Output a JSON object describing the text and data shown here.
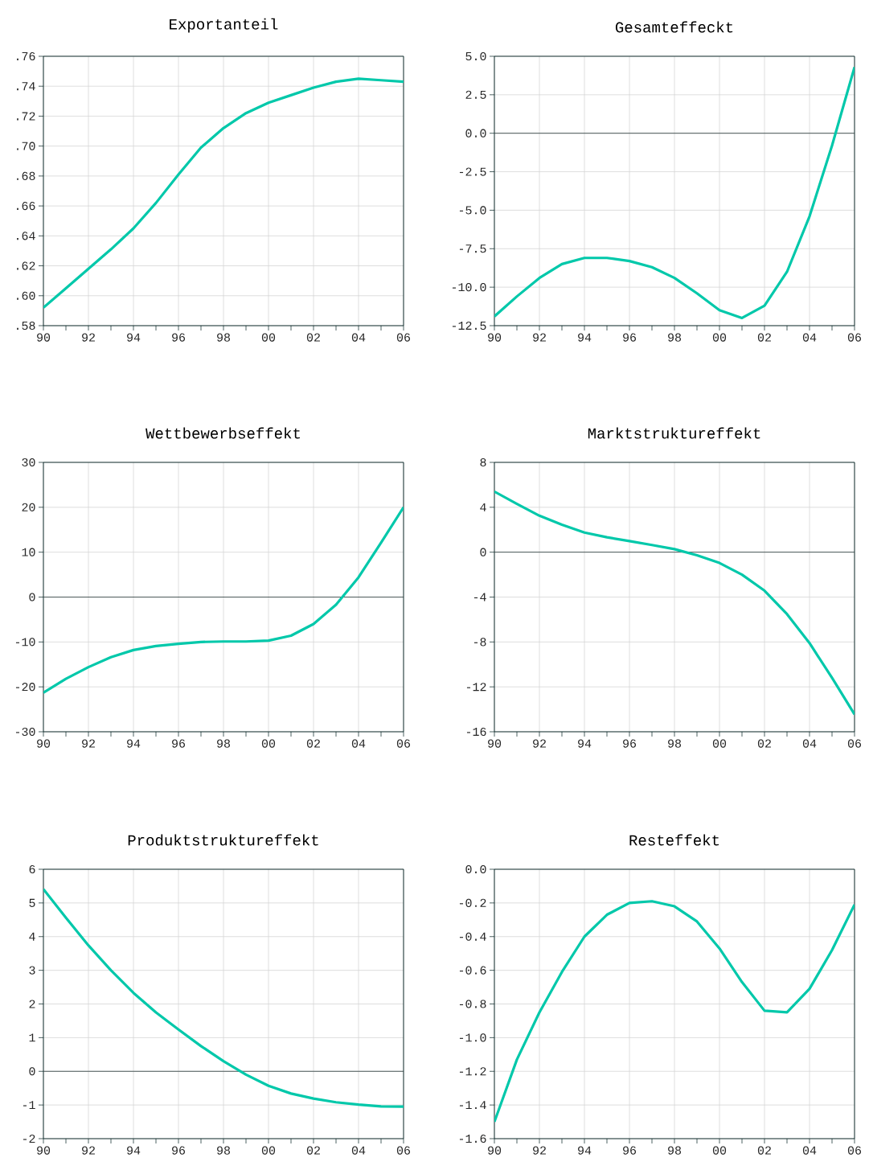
{
  "chart_data": [
    {
      "type": "line",
      "title": "Exportanteil",
      "color": "#00c8aa",
      "grid": true,
      "x": [
        1990,
        1991,
        1992,
        1993,
        1994,
        1995,
        1996,
        1997,
        1998,
        1999,
        2000,
        2001,
        2002,
        2003,
        2004,
        2005,
        2006
      ],
      "values": [
        0.592,
        0.605,
        0.618,
        0.631,
        0.645,
        0.662,
        0.681,
        0.699,
        0.712,
        0.722,
        0.729,
        0.734,
        0.739,
        0.743,
        0.745,
        0.744,
        0.743
      ],
      "xlim": [
        1990,
        2006
      ],
      "xticks": [
        {
          "value": 1990,
          "label": "90"
        },
        {
          "value": 1991,
          "label": null
        },
        {
          "value": 1992,
          "label": "92"
        },
        {
          "value": 1993,
          "label": null
        },
        {
          "value": 1994,
          "label": "94"
        },
        {
          "value": 1995,
          "label": null
        },
        {
          "value": 1996,
          "label": "96"
        },
        {
          "value": 1997,
          "label": null
        },
        {
          "value": 1998,
          "label": "98"
        },
        {
          "value": 1999,
          "label": null
        },
        {
          "value": 2000,
          "label": "00"
        },
        {
          "value": 2001,
          "label": null
        },
        {
          "value": 2002,
          "label": "02"
        },
        {
          "value": 2003,
          "label": null
        },
        {
          "value": 2004,
          "label": "04"
        },
        {
          "value": 2005,
          "label": null
        },
        {
          "value": 2006,
          "label": "06"
        }
      ],
      "ylim": [
        0.58,
        0.76
      ],
      "yticks": [
        {
          "value": 0.58,
          "label": ".58"
        },
        {
          "value": 0.6,
          "label": ".60"
        },
        {
          "value": 0.62,
          "label": ".62"
        },
        {
          "value": 0.64,
          "label": ".64"
        },
        {
          "value": 0.66,
          "label": ".66"
        },
        {
          "value": 0.68,
          "label": ".68"
        },
        {
          "value": 0.7,
          "label": ".70"
        },
        {
          "value": 0.72,
          "label": ".72"
        },
        {
          "value": 0.74,
          "label": ".74"
        },
        {
          "value": 0.76,
          "label": ".76"
        }
      ]
    },
    {
      "type": "line",
      "title": "Gesamteffeckt",
      "color": "#00c8aa",
      "grid": true,
      "x": [
        1990,
        1991,
        1992,
        1993,
        1994,
        1995,
        1996,
        1997,
        1998,
        1999,
        2000,
        2001,
        2002,
        2003,
        2004,
        2005,
        2006
      ],
      "values": [
        -11.9,
        -10.6,
        -9.4,
        -8.5,
        -8.1,
        -8.1,
        -8.3,
        -8.7,
        -9.4,
        -10.4,
        -11.5,
        -12.0,
        -11.2,
        -9.0,
        -5.4,
        -0.8,
        4.3
      ],
      "xlim": [
        1990,
        2006
      ],
      "xticks": [
        {
          "value": 1990,
          "label": "90"
        },
        {
          "value": 1991,
          "label": null
        },
        {
          "value": 1992,
          "label": "92"
        },
        {
          "value": 1993,
          "label": null
        },
        {
          "value": 1994,
          "label": "94"
        },
        {
          "value": 1995,
          "label": null
        },
        {
          "value": 1996,
          "label": "96"
        },
        {
          "value": 1997,
          "label": null
        },
        {
          "value": 1998,
          "label": "98"
        },
        {
          "value": 1999,
          "label": null
        },
        {
          "value": 2000,
          "label": "00"
        },
        {
          "value": 2001,
          "label": null
        },
        {
          "value": 2002,
          "label": "02"
        },
        {
          "value": 2003,
          "label": null
        },
        {
          "value": 2004,
          "label": "04"
        },
        {
          "value": 2005,
          "label": null
        },
        {
          "value": 2006,
          "label": "06"
        }
      ],
      "ylim": [
        -12.5,
        5
      ],
      "yticks": [
        {
          "value": -12.5,
          "label": "-12.5"
        },
        {
          "value": -10,
          "label": "-10.0"
        },
        {
          "value": -7.5,
          "label": "-7.5"
        },
        {
          "value": -5,
          "label": "-5.0"
        },
        {
          "value": -2.5,
          "label": "-2.5"
        },
        {
          "value": 0,
          "label": "0.0"
        },
        {
          "value": 2.5,
          "label": "2.5"
        },
        {
          "value": 5,
          "label": "5.0"
        }
      ],
      "ref_lines": [
        {
          "axis": "y",
          "value": 0,
          "color": "#3a4a4a"
        }
      ]
    },
    {
      "type": "line",
      "title": "Wettbewerbseffekt",
      "color": "#00c8aa",
      "grid": true,
      "x": [
        1990,
        1991,
        1992,
        1993,
        1994,
        1995,
        1996,
        1997,
        1998,
        1999,
        2000,
        2001,
        2002,
        2003,
        2004,
        2005,
        2006
      ],
      "values": [
        -21.3,
        -18.2,
        -15.6,
        -13.4,
        -11.8,
        -10.9,
        -10.4,
        -10.0,
        -9.9,
        -9.9,
        -9.7,
        -8.6,
        -6.0,
        -1.7,
        4.4,
        12.1,
        20.0
      ],
      "xlim": [
        1990,
        2006
      ],
      "xticks": [
        {
          "value": 1990,
          "label": "90"
        },
        {
          "value": 1991,
          "label": null
        },
        {
          "value": 1992,
          "label": "92"
        },
        {
          "value": 1993,
          "label": null
        },
        {
          "value": 1994,
          "label": "94"
        },
        {
          "value": 1995,
          "label": null
        },
        {
          "value": 1996,
          "label": "96"
        },
        {
          "value": 1997,
          "label": null
        },
        {
          "value": 1998,
          "label": "98"
        },
        {
          "value": 1999,
          "label": null
        },
        {
          "value": 2000,
          "label": "00"
        },
        {
          "value": 2001,
          "label": null
        },
        {
          "value": 2002,
          "label": "02"
        },
        {
          "value": 2003,
          "label": null
        },
        {
          "value": 2004,
          "label": "04"
        },
        {
          "value": 2005,
          "label": null
        },
        {
          "value": 2006,
          "label": "06"
        }
      ],
      "ylim": [
        -30,
        30
      ],
      "yticks": [
        -30,
        -20,
        -10,
        0,
        10,
        20,
        30
      ],
      "ref_lines": [
        {
          "axis": "y",
          "value": 0,
          "color": "#3a4a4a"
        }
      ]
    },
    {
      "type": "line",
      "title": "Marktstruktureffekt",
      "color": "#00c8aa",
      "grid": true,
      "x": [
        1990,
        1991,
        1992,
        1993,
        1994,
        1995,
        1996,
        1997,
        1998,
        1999,
        2000,
        2001,
        2002,
        2003,
        2004,
        2005,
        2006
      ],
      "values": [
        5.4,
        4.3,
        3.25,
        2.45,
        1.75,
        1.33,
        0.99,
        0.64,
        0.27,
        -0.27,
        -0.96,
        -2.0,
        -3.43,
        -5.52,
        -8.1,
        -11.2,
        -14.45
      ],
      "xlim": [
        1990,
        2006
      ],
      "xticks": [
        {
          "value": 1990,
          "label": "90"
        },
        {
          "value": 1991,
          "label": null
        },
        {
          "value": 1992,
          "label": "92"
        },
        {
          "value": 1993,
          "label": null
        },
        {
          "value": 1994,
          "label": "94"
        },
        {
          "value": 1995,
          "label": null
        },
        {
          "value": 1996,
          "label": "96"
        },
        {
          "value": 1997,
          "label": null
        },
        {
          "value": 1998,
          "label": "98"
        },
        {
          "value": 1999,
          "label": null
        },
        {
          "value": 2000,
          "label": "00"
        },
        {
          "value": 2001,
          "label": null
        },
        {
          "value": 2002,
          "label": "02"
        },
        {
          "value": 2003,
          "label": null
        },
        {
          "value": 2004,
          "label": "04"
        },
        {
          "value": 2005,
          "label": null
        },
        {
          "value": 2006,
          "label": "06"
        }
      ],
      "ylim": [
        -16,
        8
      ],
      "yticks": [
        -16,
        -12,
        -8,
        -4,
        0,
        4,
        8
      ],
      "ref_lines": [
        {
          "axis": "y",
          "value": 0,
          "color": "#3a4a4a"
        }
      ]
    },
    {
      "type": "line",
      "title": "Produktstruktureffekt",
      "color": "#00c8aa",
      "grid": true,
      "x": [
        1990,
        1991,
        1992,
        1993,
        1994,
        1995,
        1996,
        1997,
        1998,
        1999,
        2000,
        2001,
        2002,
        2003,
        2004,
        2005,
        2006
      ],
      "values": [
        5.41,
        4.56,
        3.74,
        3.0,
        2.33,
        1.75,
        1.24,
        0.75,
        0.3,
        -0.1,
        -0.43,
        -0.66,
        -0.81,
        -0.92,
        -0.99,
        -1.04,
        -1.05
      ],
      "xlim": [
        1990,
        2006
      ],
      "xticks": [
        {
          "value": 1990,
          "label": "90"
        },
        {
          "value": 1991,
          "label": null
        },
        {
          "value": 1992,
          "label": "92"
        },
        {
          "value": 1993,
          "label": null
        },
        {
          "value": 1994,
          "label": "94"
        },
        {
          "value": 1995,
          "label": null
        },
        {
          "value": 1996,
          "label": "96"
        },
        {
          "value": 1997,
          "label": null
        },
        {
          "value": 1998,
          "label": "98"
        },
        {
          "value": 1999,
          "label": null
        },
        {
          "value": 2000,
          "label": "00"
        },
        {
          "value": 2001,
          "label": null
        },
        {
          "value": 2002,
          "label": "02"
        },
        {
          "value": 2003,
          "label": null
        },
        {
          "value": 2004,
          "label": "04"
        },
        {
          "value": 2005,
          "label": null
        },
        {
          "value": 2006,
          "label": "06"
        }
      ],
      "ylim": [
        -2,
        6
      ],
      "yticks": [
        -2,
        -1,
        0,
        1,
        2,
        3,
        4,
        5,
        6
      ],
      "ref_lines": [
        {
          "axis": "y",
          "value": 0,
          "color": "#3a4a4a"
        }
      ]
    },
    {
      "type": "line",
      "title": "Resteffekt",
      "color": "#00c8aa",
      "grid": true,
      "x": [
        1990,
        1991,
        1992,
        1993,
        1994,
        1995,
        1996,
        1997,
        1998,
        1999,
        2000,
        2001,
        2002,
        2003,
        2004,
        2005,
        2006
      ],
      "values": [
        -1.5,
        -1.13,
        -0.85,
        -0.61,
        -0.4,
        -0.27,
        -0.2,
        -0.19,
        -0.22,
        -0.31,
        -0.47,
        -0.67,
        -0.84,
        -0.85,
        -0.71,
        -0.48,
        -0.21
      ],
      "xlim": [
        1990,
        2006
      ],
      "xticks": [
        {
          "value": 1990,
          "label": "90"
        },
        {
          "value": 1991,
          "label": null
        },
        {
          "value": 1992,
          "label": "92"
        },
        {
          "value": 1993,
          "label": null
        },
        {
          "value": 1994,
          "label": "94"
        },
        {
          "value": 1995,
          "label": null
        },
        {
          "value": 1996,
          "label": "96"
        },
        {
          "value": 1997,
          "label": null
        },
        {
          "value": 1998,
          "label": "98"
        },
        {
          "value": 1999,
          "label": null
        },
        {
          "value": 2000,
          "label": "00"
        },
        {
          "value": 2001,
          "label": null
        },
        {
          "value": 2002,
          "label": "02"
        },
        {
          "value": 2003,
          "label": null
        },
        {
          "value": 2004,
          "label": "04"
        },
        {
          "value": 2005,
          "label": null
        },
        {
          "value": 2006,
          "label": "06"
        }
      ],
      "ylim": [
        -1.6,
        0
      ],
      "yticks": [
        {
          "value": -1.6,
          "label": "-1.6"
        },
        {
          "value": -1.4,
          "label": "-1.4"
        },
        {
          "value": -1.2,
          "label": "-1.2"
        },
        {
          "value": -1,
          "label": "-1.0"
        },
        {
          "value": -0.8,
          "label": "-0.8"
        },
        {
          "value": -0.6,
          "label": "-0.6"
        },
        {
          "value": -0.4,
          "label": "-0.4"
        },
        {
          "value": -0.2,
          "label": "-0.2"
        },
        {
          "value": 0,
          "label": "0.0"
        }
      ]
    }
  ]
}
